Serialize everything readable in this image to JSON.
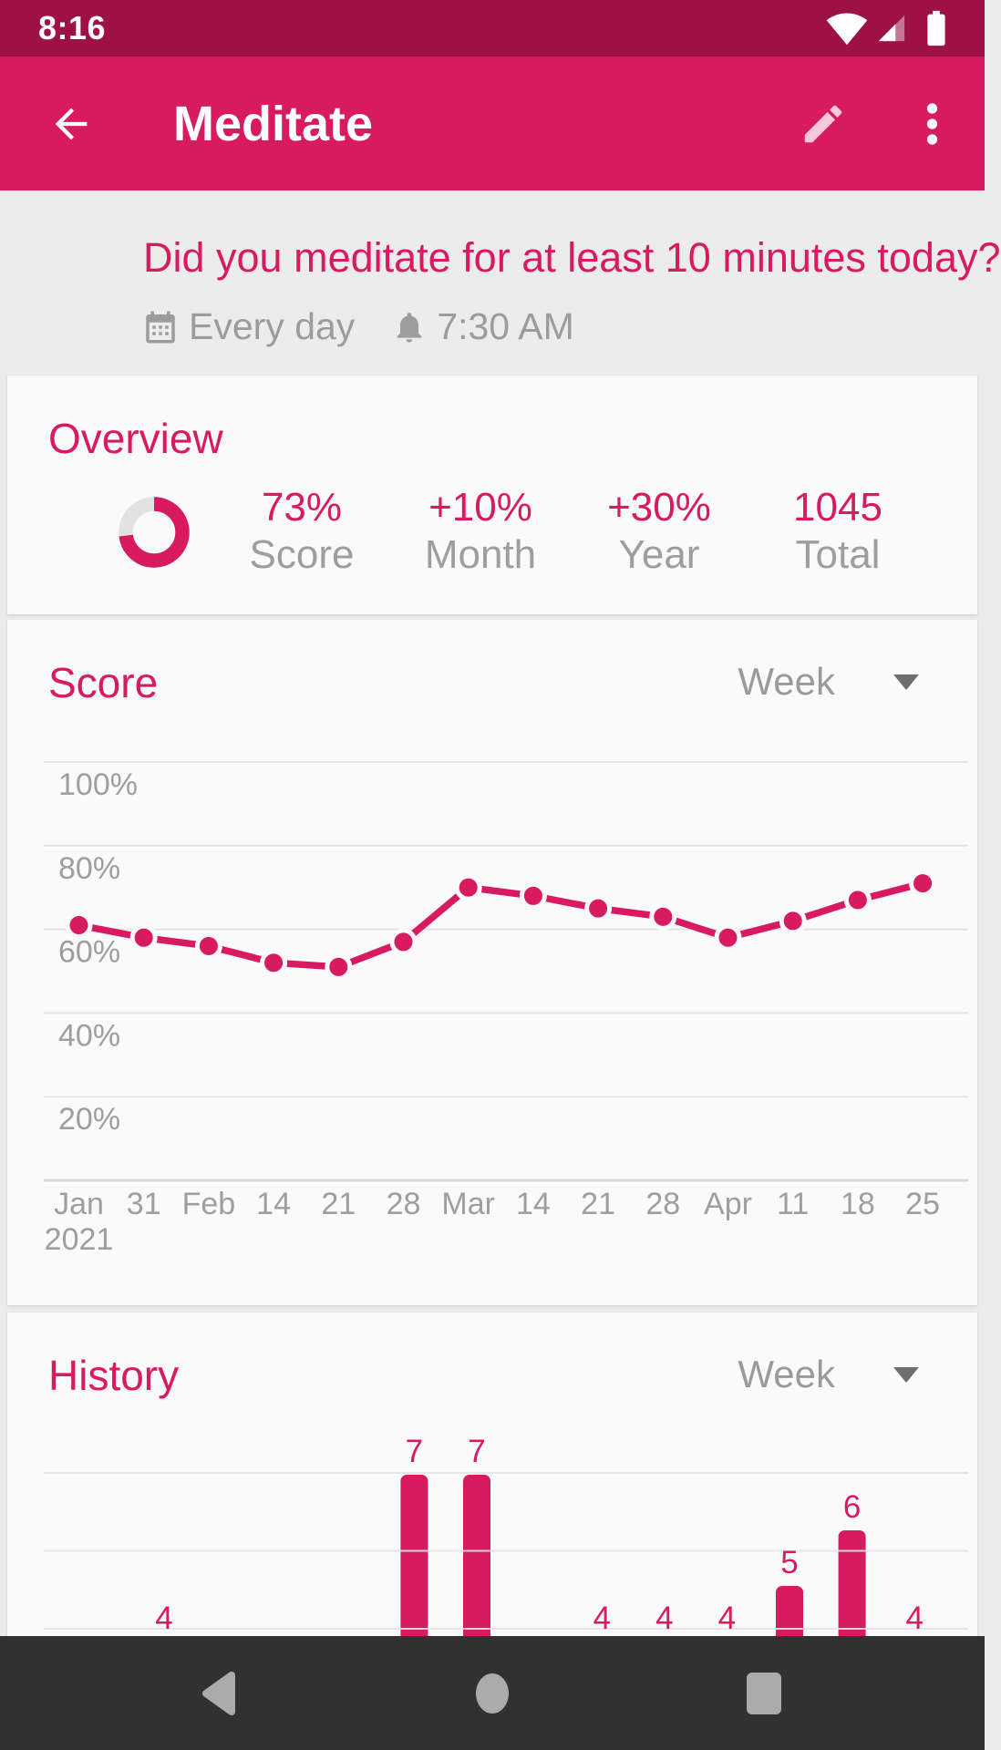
{
  "colors": {
    "primary": "#D81B60",
    "primary_dark": "#9D1146",
    "muted_gray": "#9E9E9E",
    "card_bg": "#FAFAFA",
    "page_bg": "#ECECEC",
    "gridline": "#E4E4E4",
    "nav_bar_bg": "#313131",
    "nav_icon": "#ABABAB"
  },
  "status_bar": {
    "time": "8:16",
    "icons": [
      "wifi-icon",
      "cell-signal-icon",
      "battery-icon"
    ]
  },
  "app_bar": {
    "title": "Meditate",
    "actions": [
      "back",
      "edit",
      "overflow-menu"
    ]
  },
  "question": {
    "text": "Did you meditate for at least 10 minutes today?",
    "frequency": "Every day",
    "reminder_time": "7:30 AM"
  },
  "overview": {
    "heading": "Overview",
    "ring_percent": 73,
    "stats": [
      {
        "value": "73%",
        "label": "Score"
      },
      {
        "value": "+10%",
        "label": "Month"
      },
      {
        "value": "+30%",
        "label": "Year"
      },
      {
        "value": "1045",
        "label": "Total"
      }
    ]
  },
  "score_section": {
    "heading": "Score",
    "range_selector": "Week"
  },
  "history_section": {
    "heading": "History",
    "range_selector": "Week"
  },
  "chart_data": [
    {
      "id": "score",
      "type": "line",
      "title": "Score",
      "range": "Week",
      "x_labels": [
        "Jan",
        "31",
        "Feb",
        "14",
        "21",
        "28",
        "Mar",
        "14",
        "21",
        "28",
        "Apr",
        "11",
        "18",
        "25"
      ],
      "x_sub_label": {
        "index": 0,
        "text": "2021"
      },
      "values_percent": [
        61,
        58,
        56,
        52,
        51,
        57,
        70,
        68,
        65,
        63,
        58,
        62,
        67,
        71
      ],
      "y_ticks": [
        {
          "value": 100,
          "label": "100%"
        },
        {
          "value": 80,
          "label": "80%"
        },
        {
          "value": 60,
          "label": "60%"
        },
        {
          "value": 40,
          "label": "40%"
        },
        {
          "value": 20,
          "label": "20%"
        }
      ],
      "ylim": [
        0,
        100
      ],
      "grid": true,
      "marker": "circle",
      "line_color": "#D81B60"
    },
    {
      "id": "history",
      "type": "bar",
      "title": "History",
      "range": "Week",
      "values": [
        4,
        null,
        null,
        null,
        7,
        7,
        null,
        4,
        4,
        4,
        5,
        6,
        4
      ],
      "bar_labels": [
        "4",
        "",
        "",
        "",
        "7",
        "7",
        "",
        "4",
        "4",
        "4",
        "5",
        "6",
        "4"
      ],
      "bar_color": "#D81B60"
    }
  ],
  "nav_bar": {
    "icons": [
      "back-triangle-icon",
      "home-circle-icon",
      "recents-square-icon"
    ]
  }
}
